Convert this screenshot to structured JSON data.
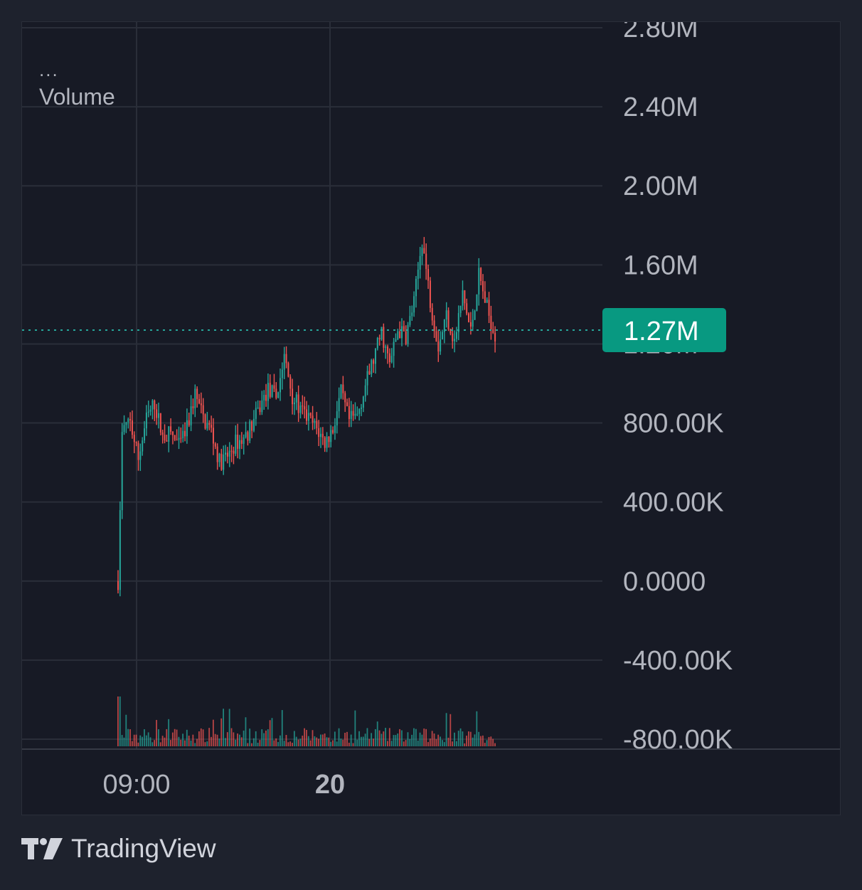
{
  "legend": {
    "dots": "...",
    "label": "Volume"
  },
  "branding": {
    "name": "TradingView",
    "logo_icon": "tradingview-logo-icon"
  },
  "colors": {
    "background": "#1e222d",
    "pane": "#171a25",
    "grid": "#2a2e39",
    "up": "#26a69a",
    "down": "#ef5350",
    "price_line": "#26a69a",
    "price_badge": "#089981",
    "axis_text": "#b2b5be"
  },
  "chart_data": {
    "type": "candlestick",
    "y_axis_ticks": [
      "2.80M",
      "2.40M",
      "2.00M",
      "1.60M",
      "1.20M",
      "800.00K",
      "400.00K",
      "0.0000",
      "-400.00K",
      "-800.00K"
    ],
    "y_tick_values": [
      2800000,
      2400000,
      2000000,
      1600000,
      1200000,
      800000,
      400000,
      0,
      -400000,
      -800000
    ],
    "ylim": [
      -800000,
      2800000
    ],
    "x_axis_ticks": [
      {
        "label": "09:00",
        "bold": false
      },
      {
        "label": "20",
        "bold": true
      }
    ],
    "last_value_label": "1.27M",
    "last_value": 1270000,
    "grid": true,
    "series_shape": [
      [
        0,
        0
      ],
      [
        2,
        770000
      ],
      [
        6,
        800000
      ],
      [
        10,
        620000
      ],
      [
        14,
        820000
      ],
      [
        18,
        900000
      ],
      [
        22,
        730000
      ],
      [
        26,
        750000
      ],
      [
        30,
        680000
      ],
      [
        34,
        770000
      ],
      [
        38,
        950000
      ],
      [
        42,
        820000
      ],
      [
        46,
        760000
      ],
      [
        50,
        600000
      ],
      [
        54,
        630000
      ],
      [
        58,
        700000
      ],
      [
        62,
        720000
      ],
      [
        66,
        790000
      ],
      [
        70,
        880000
      ],
      [
        74,
        970000
      ],
      [
        78,
        930000
      ],
      [
        82,
        1130000
      ],
      [
        86,
        940000
      ],
      [
        90,
        860000
      ],
      [
        94,
        820000
      ],
      [
        98,
        770000
      ],
      [
        102,
        700000
      ],
      [
        106,
        770000
      ],
      [
        110,
        950000
      ],
      [
        114,
        810000
      ],
      [
        118,
        840000
      ],
      [
        122,
        990000
      ],
      [
        126,
        1120000
      ],
      [
        130,
        1260000
      ],
      [
        134,
        1090000
      ],
      [
        138,
        1270000
      ],
      [
        142,
        1240000
      ],
      [
        146,
        1410000
      ],
      [
        150,
        1730000
      ],
      [
        154,
        1420000
      ],
      [
        158,
        1190000
      ],
      [
        162,
        1350000
      ],
      [
        166,
        1210000
      ],
      [
        170,
        1450000
      ],
      [
        174,
        1260000
      ],
      [
        178,
        1550000
      ],
      [
        182,
        1380000
      ],
      [
        186,
        1250000
      ]
    ]
  }
}
